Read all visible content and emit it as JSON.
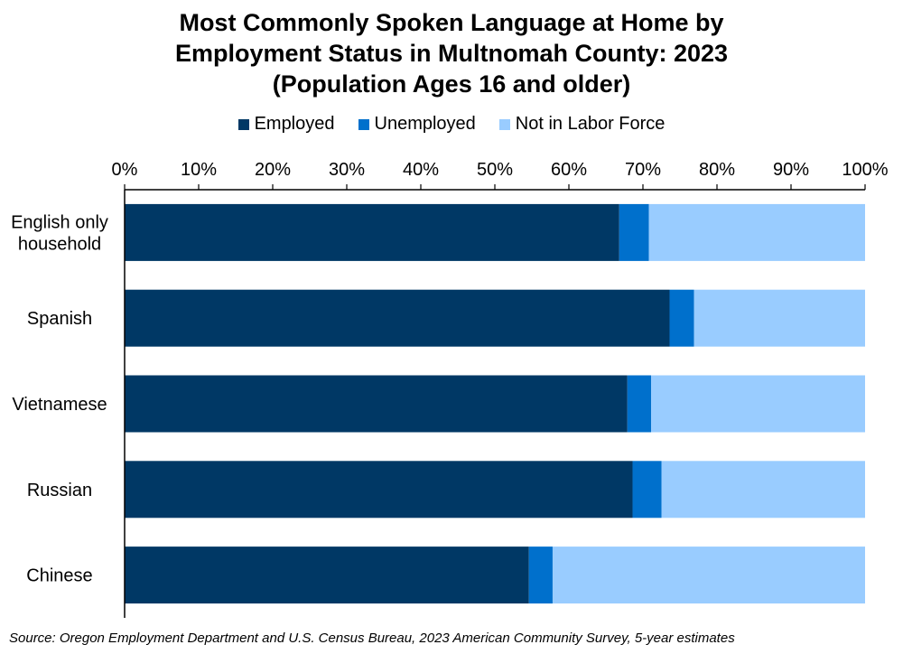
{
  "chart_data": {
    "type": "bar",
    "orientation": "horizontal",
    "stacked": true,
    "title_lines": [
      "Most Commonly Spoken Language at Home by",
      "Employment Status in Multnomah County: 2023",
      "(Population Ages 16 and older)"
    ],
    "categories": [
      [
        "English only",
        "household"
      ],
      [
        "Spanish"
      ],
      [
        "Vietnamese"
      ],
      [
        "Russian"
      ],
      [
        "Chinese"
      ]
    ],
    "series": [
      {
        "name": "Employed",
        "color": "#003865",
        "values": [
          66.8,
          73.6,
          67.9,
          68.6,
          54.6
        ]
      },
      {
        "name": "Unemployed",
        "color": "#0070cc",
        "values": [
          4.0,
          3.3,
          3.2,
          3.9,
          3.2
        ]
      },
      {
        "name": "Not in Labor Force",
        "color": "#99ccff",
        "values": [
          29.2,
          23.1,
          28.9,
          27.5,
          42.2
        ]
      }
    ],
    "xlim": [
      0,
      100
    ],
    "xticks": [
      0,
      10,
      20,
      30,
      40,
      50,
      60,
      70,
      80,
      90,
      100
    ],
    "xtick_suffix": "%",
    "legend_position": "top"
  },
  "source": "Source: Oregon Employment Department and U.S. Census Bureau, 2023 American Community Survey, 5-year estimates"
}
